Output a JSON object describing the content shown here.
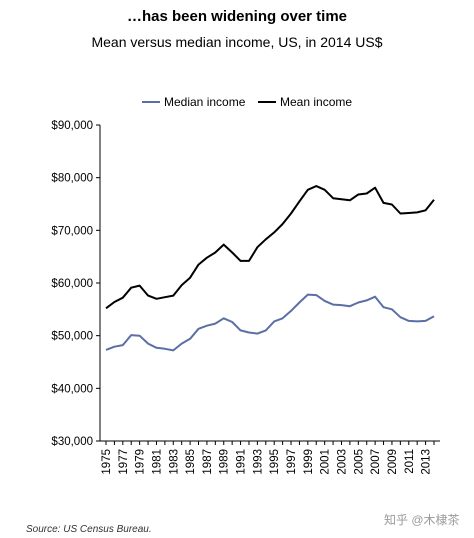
{
  "title": "…has been widening over time",
  "subtitle": "Mean versus median income, US, in 2014 US$",
  "source": "Source: US Census Bureau.",
  "watermark": "知乎 @木棣茶",
  "chart_data": {
    "type": "line",
    "ylim": [
      30000,
      90000
    ],
    "y_ticks": [
      "$30,000",
      "$40,000",
      "$50,000",
      "$60,000",
      "$70,000",
      "$80,000",
      "$90,000"
    ],
    "y_tick_values": [
      30000,
      40000,
      50000,
      60000,
      70000,
      80000,
      90000
    ],
    "x_tick_labels": [
      "1975",
      "1977",
      "1979",
      "1981",
      "1983",
      "1985",
      "1987",
      "1989",
      "1991",
      "1993",
      "1995",
      "1997",
      "1999",
      "2001",
      "2003",
      "2005",
      "2007",
      "2009",
      "2011",
      "2013"
    ],
    "x": [
      1975,
      1976,
      1977,
      1978,
      1979,
      1980,
      1981,
      1982,
      1983,
      1984,
      1985,
      1986,
      1987,
      1988,
      1989,
      1990,
      1991,
      1992,
      1993,
      1994,
      1995,
      1996,
      1997,
      1998,
      1999,
      2000,
      2001,
      2002,
      2003,
      2004,
      2005,
      2006,
      2007,
      2008,
      2009,
      2010,
      2011,
      2012,
      2013,
      2014
    ],
    "grid": false,
    "legend_position": "top",
    "series": [
      {
        "name": "Median income",
        "color": "#5b6fa6",
        "values": [
          47300,
          47900,
          48200,
          50100,
          50000,
          48500,
          47700,
          47500,
          47200,
          48500,
          49400,
          51300,
          51900,
          52300,
          53300,
          52600,
          51000,
          50600,
          50400,
          51000,
          52700,
          53300,
          54700,
          56300,
          57800,
          57700,
          56600,
          55900,
          55800,
          55600,
          56300,
          56700,
          57400,
          55400,
          55000,
          53500,
          52800,
          52700,
          52800,
          53700
        ]
      },
      {
        "name": "Mean income",
        "color": "#000000",
        "values": [
          55200,
          56400,
          57200,
          59100,
          59500,
          57600,
          57000,
          57300,
          57600,
          59600,
          61000,
          63500,
          64800,
          65800,
          67300,
          65800,
          64200,
          64200,
          66800,
          68300,
          69600,
          71200,
          73200,
          75500,
          77700,
          78400,
          77700,
          76100,
          75900,
          75700,
          76800,
          77000,
          78100,
          75200,
          74900,
          73200,
          73300,
          73400,
          73800,
          75800
        ]
      }
    ]
  }
}
